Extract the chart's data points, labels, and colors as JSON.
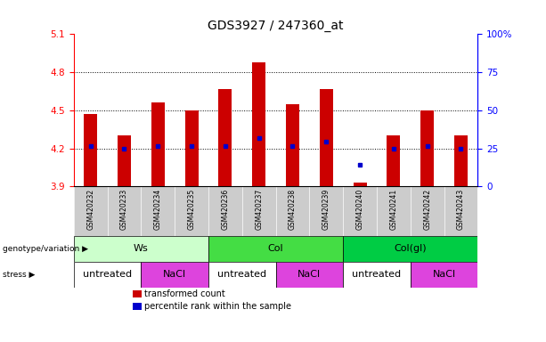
{
  "title": "GDS3927 / 247360_at",
  "samples": [
    "GSM420232",
    "GSM420233",
    "GSM420234",
    "GSM420235",
    "GSM420236",
    "GSM420237",
    "GSM420238",
    "GSM420239",
    "GSM420240",
    "GSM420241",
    "GSM420242",
    "GSM420243"
  ],
  "bar_tops": [
    4.47,
    4.3,
    4.56,
    4.5,
    4.67,
    4.88,
    4.55,
    4.67,
    3.93,
    4.3,
    4.5,
    4.3
  ],
  "bar_base": 3.9,
  "blue_dots_value": [
    4.22,
    4.2,
    4.22,
    4.22,
    4.22,
    4.28,
    4.22,
    4.25,
    4.07,
    4.2,
    4.22,
    4.2
  ],
  "ylim": [
    3.9,
    5.1
  ],
  "yticks_left": [
    3.9,
    4.2,
    4.5,
    4.8,
    5.1
  ],
  "yticks_right": [
    0,
    25,
    50,
    75,
    100
  ],
  "right_ylim": [
    0,
    100
  ],
  "bar_color": "#cc0000",
  "dot_color": "#0000cc",
  "grid_lines": [
    4.2,
    4.5,
    4.8
  ],
  "genotype_groups": [
    {
      "label": "Ws",
      "start": 0,
      "end": 4,
      "color": "#ccffcc"
    },
    {
      "label": "Col",
      "start": 4,
      "end": 8,
      "color": "#44dd44"
    },
    {
      "label": "Col(gl)",
      "start": 8,
      "end": 12,
      "color": "#00cc44"
    }
  ],
  "stress_groups": [
    {
      "label": "untreated",
      "start": 0,
      "end": 2,
      "color": "#ffffff"
    },
    {
      "label": "NaCl",
      "start": 2,
      "end": 4,
      "color": "#dd44dd"
    },
    {
      "label": "untreated",
      "start": 4,
      "end": 6,
      "color": "#ffffff"
    },
    {
      "label": "NaCl",
      "start": 6,
      "end": 8,
      "color": "#dd44dd"
    },
    {
      "label": "untreated",
      "start": 8,
      "end": 10,
      "color": "#ffffff"
    },
    {
      "label": "NaCl",
      "start": 10,
      "end": 12,
      "color": "#dd44dd"
    }
  ],
  "sample_bg_color": "#cccccc",
  "legend_items": [
    {
      "label": "transformed count",
      "color": "#cc0000"
    },
    {
      "label": "percentile rank within the sample",
      "color": "#0000cc"
    }
  ],
  "label_geno": "genotype/variation",
  "label_stress": "stress"
}
